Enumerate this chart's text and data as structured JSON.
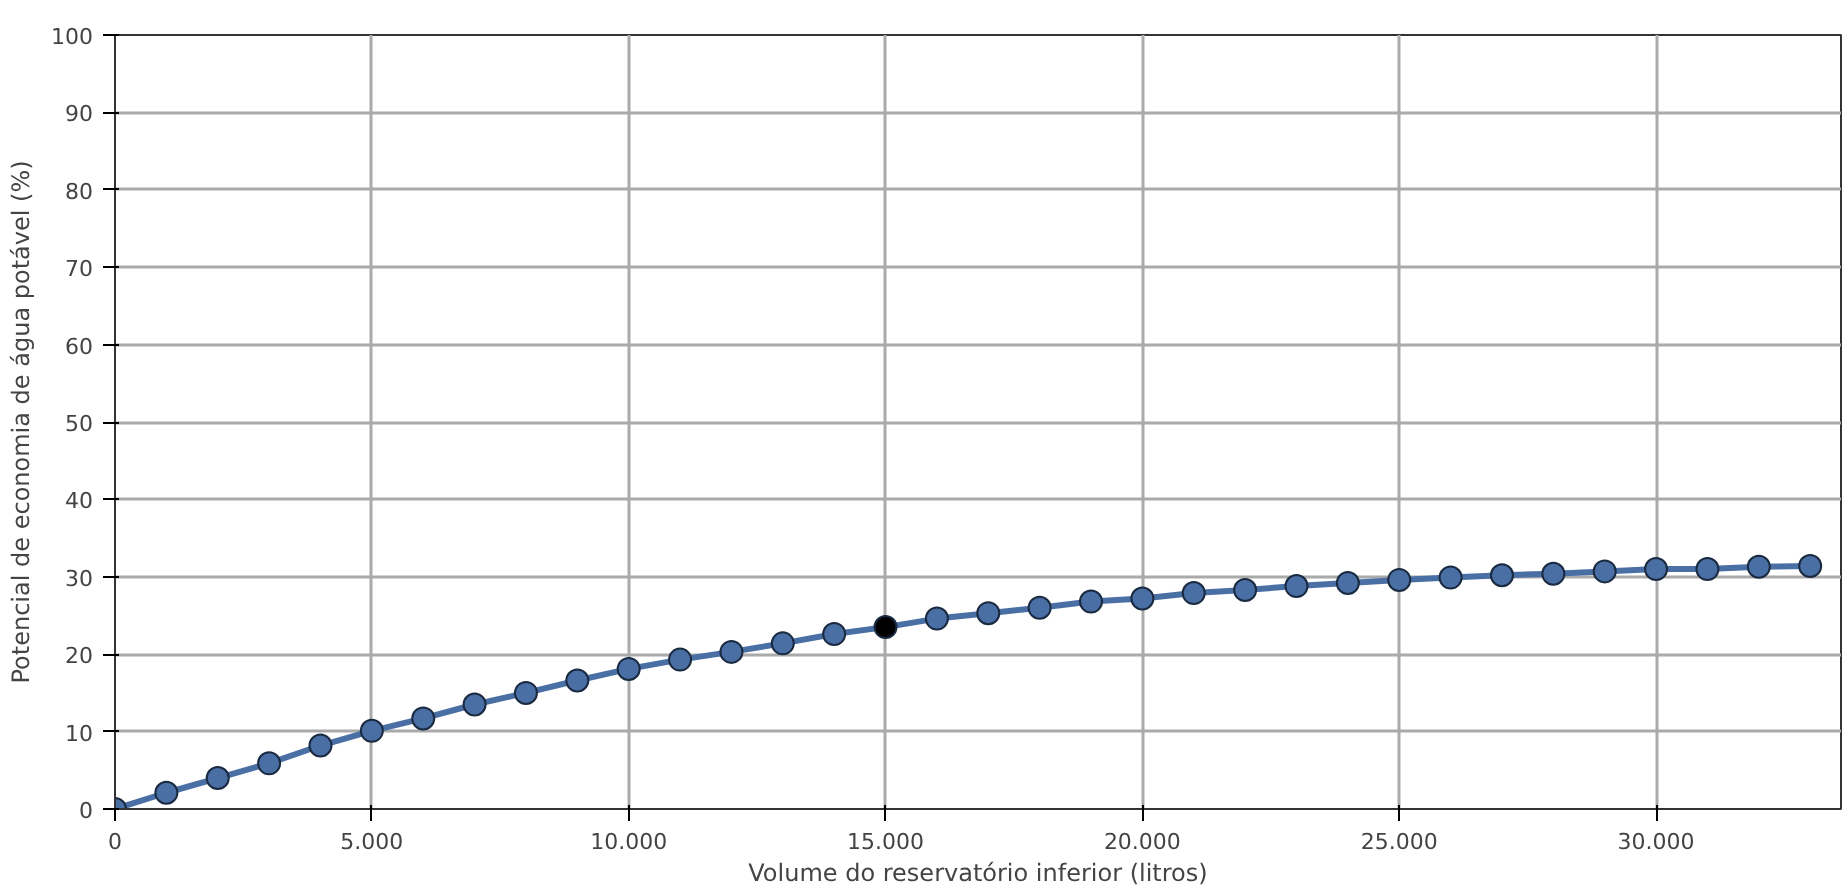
{
  "chart_data": {
    "type": "line",
    "xlabel": "Volume do reservatório inferior (litros)",
    "ylabel": "Potencial de economia de água potável (%)",
    "x": [
      0,
      1000,
      2000,
      3000,
      4000,
      5000,
      6000,
      7000,
      8000,
      9000,
      10000,
      11000,
      12000,
      13000,
      14000,
      15000,
      16000,
      17000,
      18000,
      19000,
      20000,
      21000,
      22000,
      23000,
      24000,
      25000,
      26000,
      27000,
      28000,
      29000,
      30000,
      31000,
      32000,
      33000
    ],
    "series": [
      {
        "color": "#4a6fa5",
        "values": [
          0,
          2.1,
          4,
          5.9,
          8.2,
          10.1,
          11.7,
          13.5,
          15,
          16.6,
          18.1,
          19.3,
          20.3,
          21.4,
          22.6,
          23.5,
          24.6,
          25.3,
          26,
          26.8,
          27.2,
          27.9,
          28.3,
          28.8,
          29.2,
          29.6,
          29.9,
          30.2,
          30.4,
          30.7,
          31,
          31,
          31.3,
          31.4
        ],
        "colors": [
          "#4a6fa5",
          "#4a6fa5",
          "#4a6fa5",
          "#4a6fa5",
          "#4a6fa5",
          "#4a6fa5",
          "#4a6fa5",
          "#4a6fa5",
          "#4a6fa5",
          "#4a6fa5",
          "#4a6fa5",
          "#4a6fa5",
          "#4a6fa5",
          "#4a6fa5",
          "#4a6fa5",
          "#000000",
          "#4a6fa5",
          "#4a6fa5",
          "#4a6fa5",
          "#4a6fa5",
          "#4a6fa5",
          "#4a6fa5",
          "#4a6fa5",
          "#4a6fa5",
          "#4a6fa5",
          "#4a6fa5",
          "#4a6fa5",
          "#4a6fa5",
          "#4a6fa5",
          "#4a6fa5",
          "#4a6fa5",
          "#4a6fa5",
          "#4a6fa5",
          "#4a6fa5"
        ]
      }
    ],
    "xlim": [
      0,
      33600
    ],
    "xticks": [
      0,
      {
        "value": 5000,
        "label": "5.000"
      },
      {
        "value": 10000,
        "label": "10.000"
      },
      {
        "value": 15000,
        "label": "15.000"
      },
      {
        "value": 20000,
        "label": "20.000"
      },
      {
        "value": 25000,
        "label": "25.000"
      },
      {
        "value": 30000,
        "label": "30.000"
      }
    ],
    "ylim": [
      0,
      100
    ],
    "yticks": [
      0,
      10,
      20,
      30,
      40,
      50,
      60,
      70,
      80,
      90,
      100
    ],
    "grid": true,
    "marker": "circle",
    "line_style": "solid"
  }
}
